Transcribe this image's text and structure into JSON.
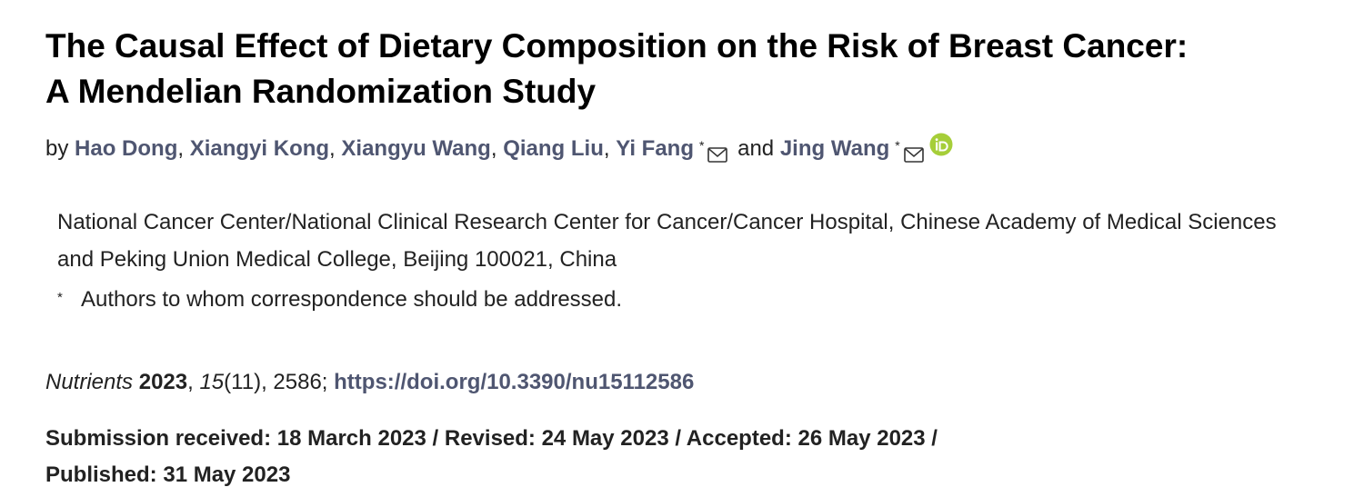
{
  "article": {
    "title_line1": "The Causal Effect of Dietary Composition on the Risk of Breast Cancer:",
    "title_line2": "A Mendelian Randomization Study",
    "by_label": "by",
    "authors": [
      {
        "name": "Hao Dong"
      },
      {
        "name": "Xiangyi Kong"
      },
      {
        "name": "Xiangyu Wang"
      },
      {
        "name": "Qiang Liu"
      },
      {
        "name": "Yi Fang",
        "corresponding_mark": "*"
      },
      {
        "name": "Jing Wang",
        "corresponding_mark": "*"
      }
    ],
    "separator": ",",
    "and_label": "and",
    "affiliation": "National Cancer Center/National Clinical Research Center for Cancer/Cancer Hospital, Chinese Academy of Medical Sciences and Peking Union Medical College, Beijing 100021, China",
    "footnote_mark": "*",
    "footnote_text": "Authors to whom correspondence should be addressed.",
    "citation": {
      "journal": "Nutrients",
      "year": "2023",
      "volume": "15",
      "issue": "(11)",
      "article_number": "2586;",
      "doi": "https://doi.org/10.3390/nu15112586"
    },
    "dates_line1": "Submission received: 18 March 2023 / Revised: 24 May 2023 / Accepted: 26 May 2023 /",
    "dates_line2": "Published: 31 May 2023"
  },
  "colors": {
    "link": "#4f5671",
    "orcid": "#a6ce39",
    "text": "#222222"
  },
  "icons": [
    "mail-icon",
    "orcid-icon"
  ]
}
